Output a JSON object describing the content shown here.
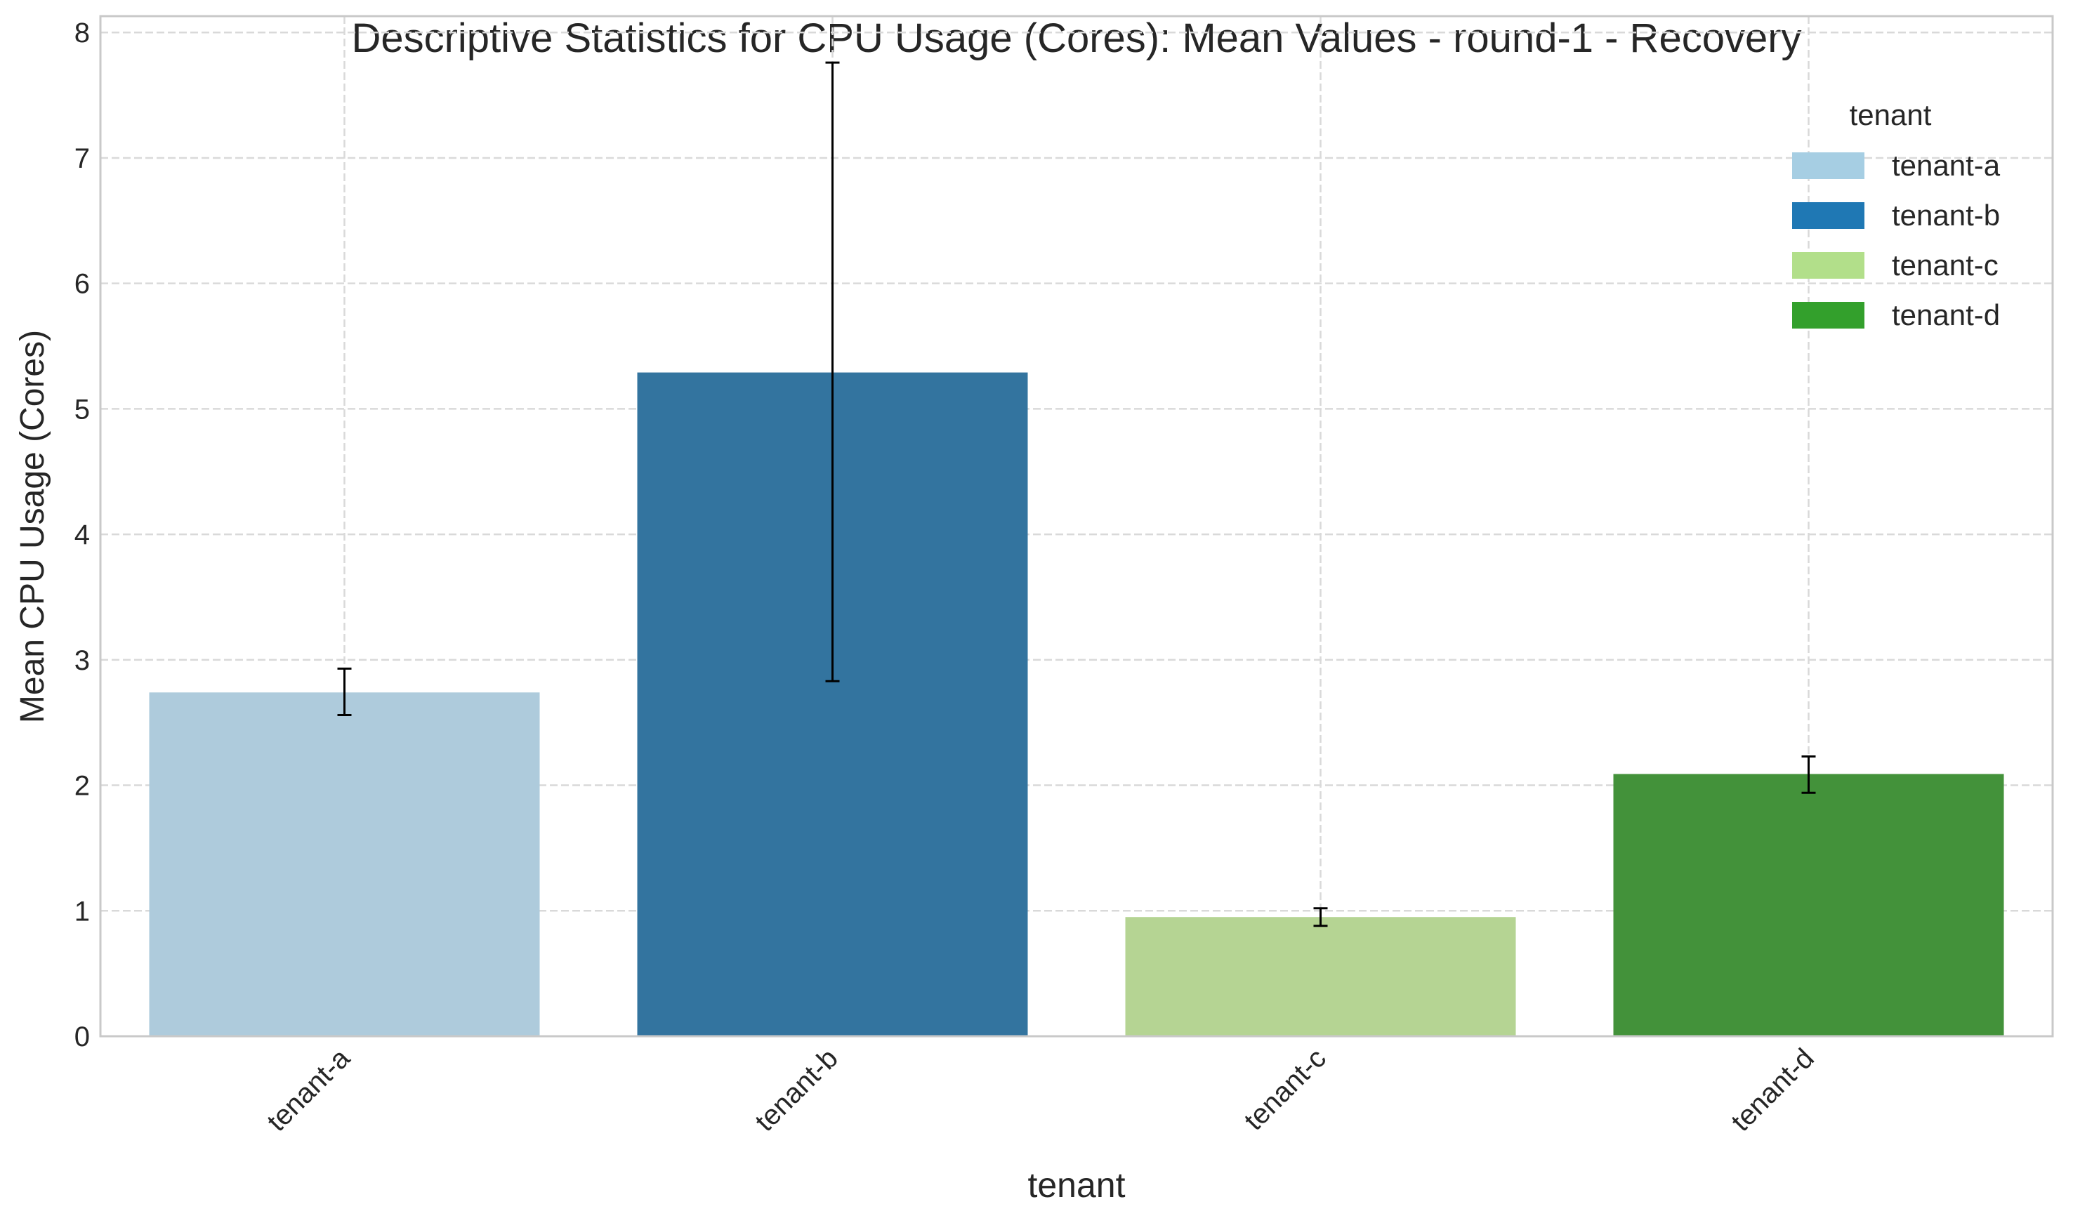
{
  "chart_data": {
    "type": "bar",
    "title": "Descriptive Statistics for CPU Usage (Cores): Mean Values - round-1 - Recovery",
    "xlabel": "tenant",
    "ylabel": "Mean CPU Usage (Cores)",
    "categories": [
      "tenant-a",
      "tenant-b",
      "tenant-c",
      "tenant-d"
    ],
    "values": [
      2.74,
      5.29,
      0.95,
      2.09
    ],
    "error_low": [
      2.56,
      2.83,
      0.88,
      1.94
    ],
    "error_high": [
      2.93,
      7.76,
      1.02,
      2.23
    ],
    "colors": [
      "#aecbdc",
      "#33749f",
      "#b5d493",
      "#43923a"
    ],
    "ylim": [
      0,
      8.13
    ],
    "yticks": [
      "0",
      "1",
      "2",
      "3",
      "4",
      "5",
      "6",
      "7",
      "8"
    ],
    "ytick_values": [
      0,
      1,
      2,
      3,
      4,
      5,
      6,
      7,
      8
    ],
    "grid": true,
    "legend": {
      "title": "tenant",
      "position": "top-right",
      "entries": [
        {
          "label": "tenant-a",
          "color": "#a6cee3"
        },
        {
          "label": "tenant-b",
          "color": "#1f78b4"
        },
        {
          "label": "tenant-c",
          "color": "#b2df8a"
        },
        {
          "label": "tenant-d",
          "color": "#33a02c"
        }
      ]
    }
  }
}
